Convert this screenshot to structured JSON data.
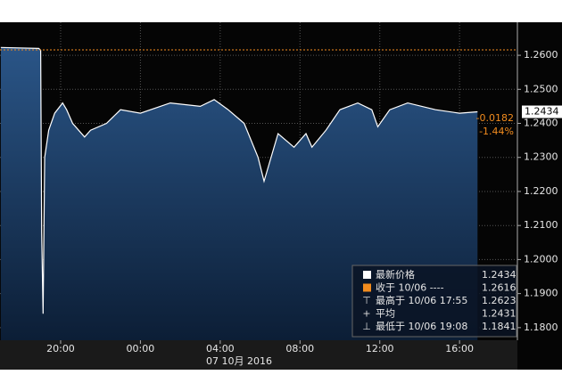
{
  "chart_data": {
    "type": "area",
    "x": [
      17.0,
      18.9,
      19.0,
      19.05,
      19.12,
      19.2,
      19.4,
      19.7,
      20.1,
      20.3,
      20.6,
      21.2,
      21.5,
      22.3,
      23.0,
      24.0,
      25.5,
      27.0,
      27.7,
      28.4,
      29.2,
      29.9,
      30.2,
      30.9,
      31.7,
      32.3,
      32.6,
      33.3,
      34.0,
      34.9,
      35.6,
      35.9,
      36.5,
      37.4,
      38.8,
      40.0,
      40.9
    ],
    "series": [
      {
        "name": "最新价格",
        "color": "#ffffff",
        "values": [
          1.2623,
          1.262,
          1.2615,
          1.208,
          1.1841,
          1.23,
          1.238,
          1.243,
          1.246,
          1.244,
          1.24,
          1.236,
          1.238,
          1.24,
          1.244,
          1.243,
          1.246,
          1.245,
          1.247,
          1.244,
          1.24,
          1.23,
          1.223,
          1.237,
          1.233,
          1.237,
          1.233,
          1.238,
          1.244,
          1.246,
          1.244,
          1.239,
          1.244,
          1.246,
          1.244,
          1.243,
          1.2434
        ]
      }
    ],
    "reference_line": {
      "value": 1.2616,
      "color": "#f28c1e"
    },
    "xlim": [
      16.96,
      42.9
    ],
    "ylim": [
      1.1763,
      1.2697
    ],
    "xticks": [
      {
        "value": 20,
        "label": "20:00"
      },
      {
        "value": 24,
        "label": "00:00"
      },
      {
        "value": 28,
        "label": "04:00"
      },
      {
        "value": 32,
        "label": "08:00"
      },
      {
        "value": 36,
        "label": "12:00"
      },
      {
        "value": 40,
        "label": "16:00"
      }
    ],
    "yticks": [
      {
        "value": 1.26,
        "label": "1.2600"
      },
      {
        "value": 1.25,
        "label": "1.2500"
      },
      {
        "value": 1.24,
        "label": "1.2400"
      },
      {
        "value": 1.23,
        "label": "1.2300"
      },
      {
        "value": 1.22,
        "label": "1.2200"
      },
      {
        "value": 1.21,
        "label": "1.2100"
      },
      {
        "value": 1.2,
        "label": "1.2000"
      },
      {
        "value": 1.19,
        "label": "1.1900"
      },
      {
        "value": 1.18,
        "label": "1.1800"
      }
    ],
    "date_label": "07 10月 2016",
    "grid": true,
    "change": {
      "values": [
        -0.0182,
        -1.44
      ],
      "value_labels": [
        "-0.0182",
        "-1.44%"
      ],
      "color": "#f28c1e"
    },
    "legend": [
      {
        "label": "最新价格",
        "value": 1.2434
      },
      {
        "label": "收于 10/06 ----",
        "value": 1.2616
      },
      {
        "label": "最高于 10/06 17:55",
        "value": 1.2623
      },
      {
        "label": "平均",
        "value": 1.2431
      },
      {
        "label": "最低于 10/06 19:08",
        "value": 1.1841
      }
    ]
  }
}
